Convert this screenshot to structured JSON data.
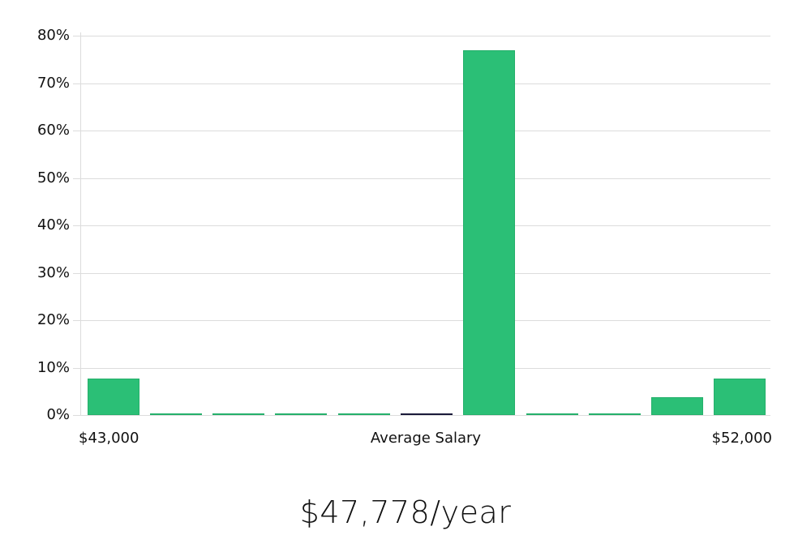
{
  "chart_data": {
    "type": "bar",
    "title": "",
    "xlabel": "Average Salary",
    "ylabel": "",
    "x_range_labels": [
      "$43,000",
      "$52,000"
    ],
    "categories": [
      "bin1",
      "bin2",
      "bin3",
      "bin4",
      "bin5",
      "bin6",
      "bin7",
      "bin8",
      "bin9",
      "bin10",
      "bin11"
    ],
    "values": [
      7.7,
      0,
      0,
      0,
      0,
      0,
      76.9,
      0,
      0,
      3.8,
      7.7
    ],
    "highlight_index": 5,
    "ylim": [
      0,
      80
    ],
    "yticks": [
      "0%",
      "10%",
      "20%",
      "30%",
      "40%",
      "50%",
      "60%",
      "70%",
      "80%"
    ],
    "grid": true,
    "bar_color": "#2bbf76",
    "highlight_color": "#1a1a3a"
  },
  "labels": {
    "x_min": "$43,000",
    "x_center": "Average Salary",
    "x_max": "$52,000",
    "average": "$47,778/year"
  }
}
